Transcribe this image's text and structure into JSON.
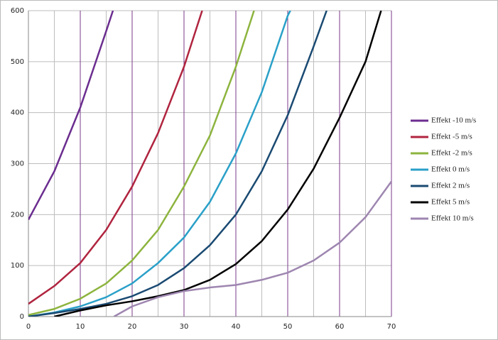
{
  "chart_data": {
    "type": "line",
    "xlim": [
      0,
      70
    ],
    "xticks": [
      0,
      10,
      20,
      30,
      40,
      50,
      60,
      70
    ],
    "x_minor_grid": [
      5,
      15,
      25,
      35,
      45,
      55,
      65
    ],
    "ylim": [
      0,
      600
    ],
    "yticks": [
      0,
      100,
      200,
      300,
      400,
      500,
      600
    ],
    "grid": true,
    "legend": "right",
    "series": [
      {
        "name": "Effekt -10 m/s",
        "color": "#6b2d8f",
        "x": [
          0,
          5,
          10,
          15,
          16.3
        ],
        "values": [
          190,
          285,
          410,
          560,
          600
        ]
      },
      {
        "name": "Effekt -5 m/s",
        "color": "#b0243f",
        "x": [
          0,
          5,
          10,
          15,
          20,
          25,
          30,
          33.5
        ],
        "values": [
          25,
          60,
          105,
          170,
          255,
          360,
          490,
          600
        ]
      },
      {
        "name": "Effekt -2 m/s",
        "color": "#8db43e",
        "x": [
          0,
          5,
          10,
          15,
          20,
          25,
          30,
          35,
          40,
          43.5
        ],
        "values": [
          3,
          15,
          35,
          65,
          110,
          170,
          255,
          355,
          490,
          600
        ]
      },
      {
        "name": "Effekt 0 m/s",
        "color": "#2aa0c8",
        "x": [
          0,
          5,
          10,
          15,
          20,
          25,
          30,
          35,
          40,
          45,
          50,
          50.5
        ],
        "values": [
          0,
          8,
          20,
          38,
          65,
          105,
          155,
          225,
          320,
          440,
          590,
          600
        ]
      },
      {
        "name": "Effekt 2 m/s",
        "color": "#1a4a72",
        "x": [
          0,
          5,
          10,
          15,
          20,
          25,
          30,
          35,
          40,
          45,
          50,
          55,
          57.5
        ],
        "values": [
          0,
          7,
          15,
          25,
          40,
          62,
          95,
          140,
          200,
          285,
          395,
          530,
          600
        ]
      },
      {
        "name": "Effekt 5 m/s",
        "color": "#000000",
        "x": [
          5,
          10,
          15,
          20,
          25,
          30,
          35,
          40,
          45,
          50,
          55,
          60,
          65,
          68
        ],
        "values": [
          0,
          12,
          22,
          30,
          40,
          52,
          72,
          103,
          148,
          210,
          290,
          390,
          500,
          600
        ]
      },
      {
        "name": "Effekt 10 m/s",
        "color": "#9e86b0",
        "x": [
          16.5,
          20,
          25,
          30,
          35,
          40,
          45,
          50,
          55,
          60,
          65,
          70
        ],
        "values": [
          0,
          20,
          38,
          50,
          57,
          62,
          72,
          86,
          110,
          145,
          195,
          265
        ]
      }
    ]
  }
}
